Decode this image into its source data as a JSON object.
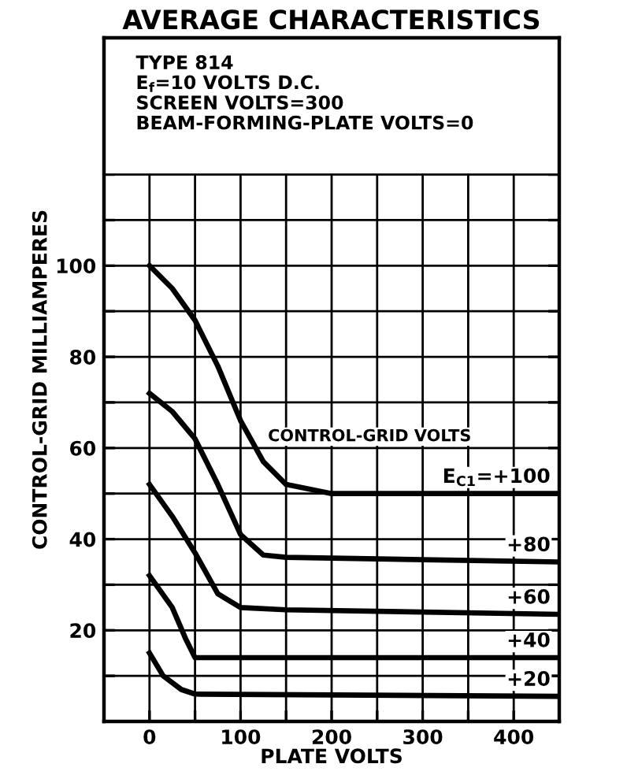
{
  "chart_data": {
    "type": "line",
    "title": "AVERAGE CHARACTERISTICS",
    "xlabel": "PLATE VOLTS",
    "ylabel": "CONTROL-GRID MILLIAMPERES",
    "annotations": [
      "TYPE 814\nE$_{f}$=10 VOLTS D.C.\nSCREEN VOLTS=300\nBEAM-FORMING-PLATE VOLTS=0",
      "CONTROL-GRID VOLTS"
    ],
    "series": [
      {
        "name": "E$_{C1}$=+100",
        "color": "#000000",
        "x": [
          0,
          25,
          50,
          75,
          100,
          125,
          150,
          200,
          450
        ],
        "values": [
          100,
          95,
          88,
          78,
          66,
          57,
          52,
          50,
          50
        ]
      },
      {
        "name": "+80",
        "color": "#000000",
        "x": [
          0,
          25,
          50,
          75,
          100,
          125,
          150,
          450
        ],
        "values": [
          72,
          68,
          62,
          52,
          41,
          36.5,
          36,
          35
        ]
      },
      {
        "name": "+60",
        "color": "#000000",
        "x": [
          0,
          25,
          50,
          75,
          100,
          150,
          450
        ],
        "values": [
          52,
          45,
          37,
          28,
          25,
          24.5,
          23.5
        ]
      },
      {
        "name": "+40",
        "color": "#000000",
        "x": [
          0,
          25,
          40,
          50,
          100,
          450
        ],
        "values": [
          32,
          25,
          18,
          14,
          14,
          14
        ]
      },
      {
        "name": "+20",
        "color": "#000000",
        "x": [
          0,
          15,
          35,
          50,
          450
        ],
        "values": [
          15,
          10,
          7,
          6,
          5.5
        ]
      }
    ],
    "xlim": [
      -50,
      450
    ],
    "ylim": [
      0,
      150
    ],
    "xticks": [
      {
        "value": -50,
        "label": null
      },
      0,
      {
        "value": 50,
        "label": null
      },
      100,
      {
        "value": 150,
        "label": null
      },
      200,
      {
        "value": 250,
        "label": null
      },
      300,
      {
        "value": 350,
        "label": null
      },
      400,
      {
        "value": 450,
        "label": null
      }
    ],
    "yticks": [
      {
        "value": 0,
        "label": null
      },
      {
        "value": 10,
        "label": null
      },
      20,
      {
        "value": 30,
        "label": null
      },
      40,
      {
        "value": 50,
        "label": null
      },
      60,
      {
        "value": 70,
        "label": null
      },
      80,
      {
        "value": 90,
        "label": null
      },
      100,
      {
        "value": 110,
        "label": null
      },
      {
        "value": 120,
        "label": null
      },
      {
        "value": 130,
        "label": null
      },
      {
        "value": 140,
        "label": null
      },
      {
        "value": 150,
        "label": null
      }
    ],
    "grid": true,
    "marker": "none",
    "line_style": "solid",
    "legend": "right"
  }
}
